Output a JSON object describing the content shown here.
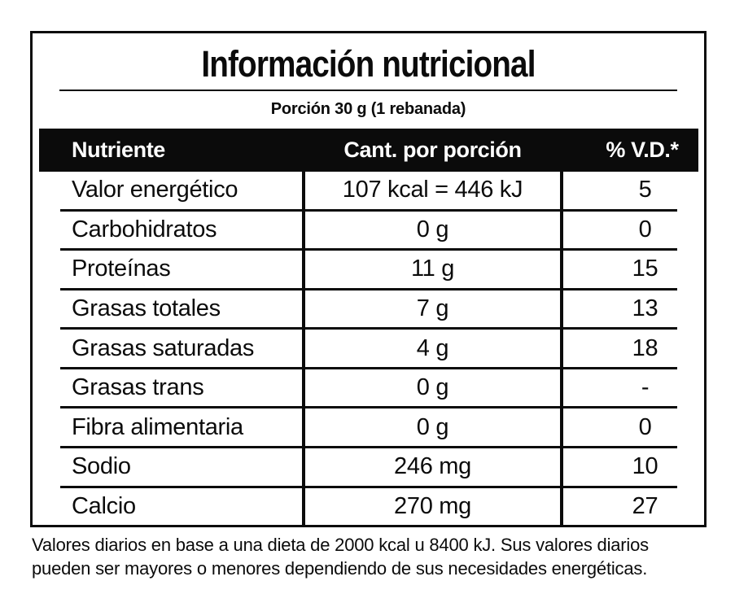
{
  "colors": {
    "ink": "#0b0b0b",
    "paper": "#ffffff",
    "header_bg": "#0b0b0b",
    "header_text": "#ffffff"
  },
  "label": {
    "title": "Información nutricional",
    "serving": "Porción 30 g (1 rebanada)",
    "table": {
      "headers": {
        "nutrient": "Nutriente",
        "amount": "Cant. por porción",
        "daily_value": "% V.D.*"
      },
      "rows": [
        {
          "nutrient": "Valor energético",
          "amount": "107 kcal = 446 kJ",
          "dv": "5"
        },
        {
          "nutrient": "Carbohidratos",
          "amount": "0 g",
          "dv": "0"
        },
        {
          "nutrient": "Proteínas",
          "amount": "11 g",
          "dv": "15"
        },
        {
          "nutrient": "Grasas totales",
          "amount": "7 g",
          "dv": "13"
        },
        {
          "nutrient": "Grasas saturadas",
          "amount": "4 g",
          "dv": "18"
        },
        {
          "nutrient": "Grasas trans",
          "amount": "0 g",
          "dv": "-"
        },
        {
          "nutrient": "Fibra alimentaria",
          "amount": "0 g",
          "dv": "0"
        },
        {
          "nutrient": "Sodio",
          "amount": "246 mg",
          "dv": "10"
        },
        {
          "nutrient": "Calcio",
          "amount": "270 mg",
          "dv": "27"
        }
      ]
    },
    "footnote_lines": [
      "Valores diarios en base a una dieta de 2000 kcal u 8400 kJ. Sus valores diarios",
      "pueden ser mayores o menores dependiendo de sus necesidades energéticas."
    ]
  }
}
